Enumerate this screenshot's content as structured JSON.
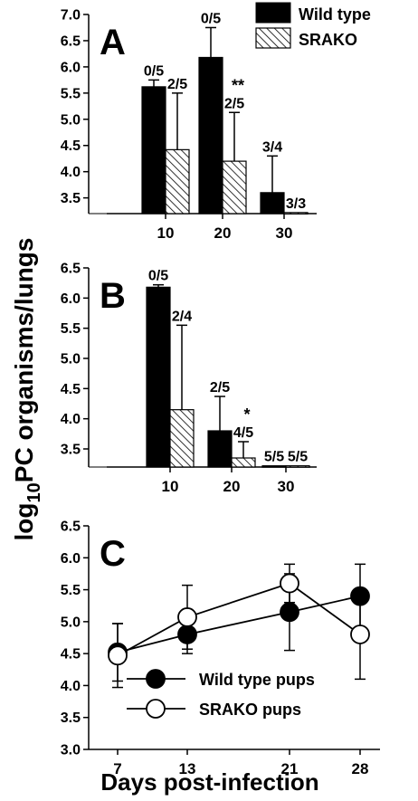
{
  "chart_data": [
    {
      "panel": "A",
      "type": "bar",
      "categories": [
        "10",
        "20",
        "30"
      ],
      "series": [
        {
          "name": "Wild type",
          "values": [
            5.62,
            6.18,
            3.6
          ],
          "errors": [
            0.13,
            0.57,
            0.7
          ],
          "fractions": [
            "0/5",
            "0/5",
            "3/4"
          ]
        },
        {
          "name": "SRAKO",
          "values": [
            4.42,
            4.2,
            3.22
          ],
          "errors": [
            1.08,
            0.93,
            0
          ],
          "fractions": [
            "2/5",
            "2/5",
            "3/3"
          ]
        }
      ],
      "significance": [
        {
          "category": "20",
          "label": "**"
        }
      ],
      "ylim": [
        3.2,
        7.0
      ],
      "yticks": [
        "3.5",
        "4.0",
        "4.5",
        "5.0",
        "5.5",
        "6.0",
        "6.5",
        "7.0"
      ],
      "legend": "top-right"
    },
    {
      "panel": "B",
      "type": "bar",
      "categories": [
        "10",
        "20",
        "30"
      ],
      "series": [
        {
          "name": "Wild type",
          "values": [
            6.18,
            3.8,
            3.22
          ],
          "errors": [
            0.04,
            0.57,
            0
          ],
          "fractions": [
            "0/5",
            "2/5",
            "5/5"
          ]
        },
        {
          "name": "SRAKO",
          "values": [
            4.15,
            3.35,
            3.22
          ],
          "errors": [
            1.4,
            0.27,
            0
          ],
          "fractions": [
            "2/4",
            "4/5",
            "5/5"
          ]
        }
      ],
      "significance": [
        {
          "category": "20",
          "label": "*"
        }
      ],
      "ylim": [
        3.2,
        6.5
      ],
      "yticks": [
        "3.5",
        "4.0",
        "4.5",
        "5.0",
        "5.5",
        "6.0",
        "6.5"
      ]
    },
    {
      "panel": "C",
      "type": "line",
      "x": [
        7,
        13,
        21,
        28
      ],
      "xticks": [
        "7",
        "13",
        "21",
        "28"
      ],
      "series": [
        {
          "name": "Wild type pups",
          "marker": "filled-circle",
          "values": [
            4.52,
            4.8,
            5.15,
            5.4
          ],
          "errors": [
            0.45,
            0.3,
            0.6,
            0.5
          ]
        },
        {
          "name": "SRAKO pups",
          "marker": "open-circle",
          "values": [
            4.47,
            5.07,
            5.6,
            4.8
          ],
          "errors": [
            0.5,
            0.5,
            0.3,
            0.7
          ]
        }
      ],
      "ylim": [
        3.0,
        6.5
      ],
      "yticks": [
        "3.0",
        "3.5",
        "4.0",
        "4.5",
        "5.0",
        "5.5",
        "6.0",
        "6.5"
      ],
      "xlabel": "Days post-infection",
      "legend": "bottom-left"
    }
  ],
  "ylabel": {
    "prefix": "log",
    "sub": "10",
    "rest": "PC organisms/lungs"
  }
}
